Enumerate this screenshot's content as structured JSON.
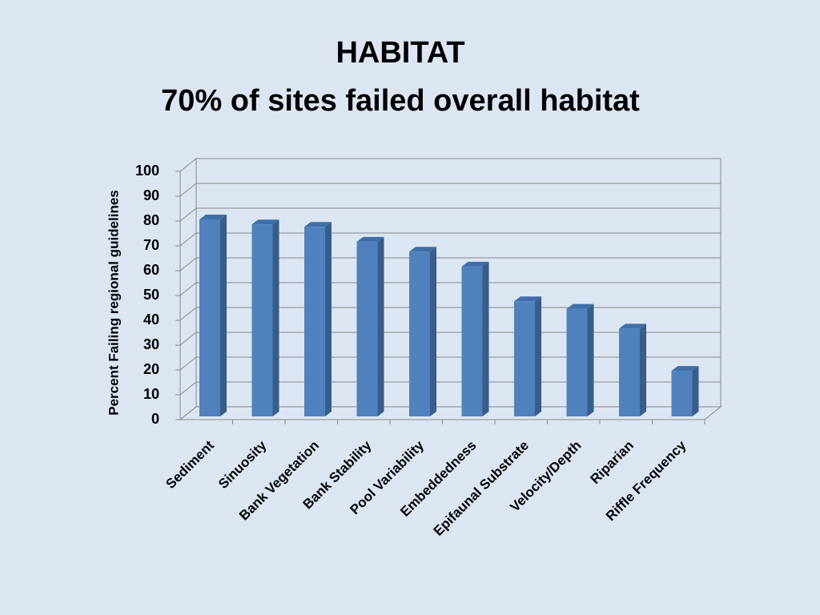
{
  "chart_data": {
    "type": "bar3d",
    "title": "HABITAT",
    "subtitle": "70% of sites failed overall habitat",
    "y_label": "Percent Failing regional guidelines",
    "categories": [
      "Sediment",
      "Sinuosity",
      "Bank Vegetation",
      "Bank Stability",
      "Pool Variability",
      "Embeddedness",
      "Epifaunal Substrate",
      "Velocity/Depth",
      "Riparian",
      "Riffle Frequency"
    ],
    "values": [
      80,
      78,
      77,
      71,
      67,
      61,
      47,
      44,
      36,
      19
    ],
    "color": "#4f81bd",
    "ylim": [
      0,
      100
    ],
    "yticks": [
      0,
      10,
      20,
      30,
      40,
      50,
      60,
      70,
      80,
      90,
      100
    ],
    "grid": true
  }
}
